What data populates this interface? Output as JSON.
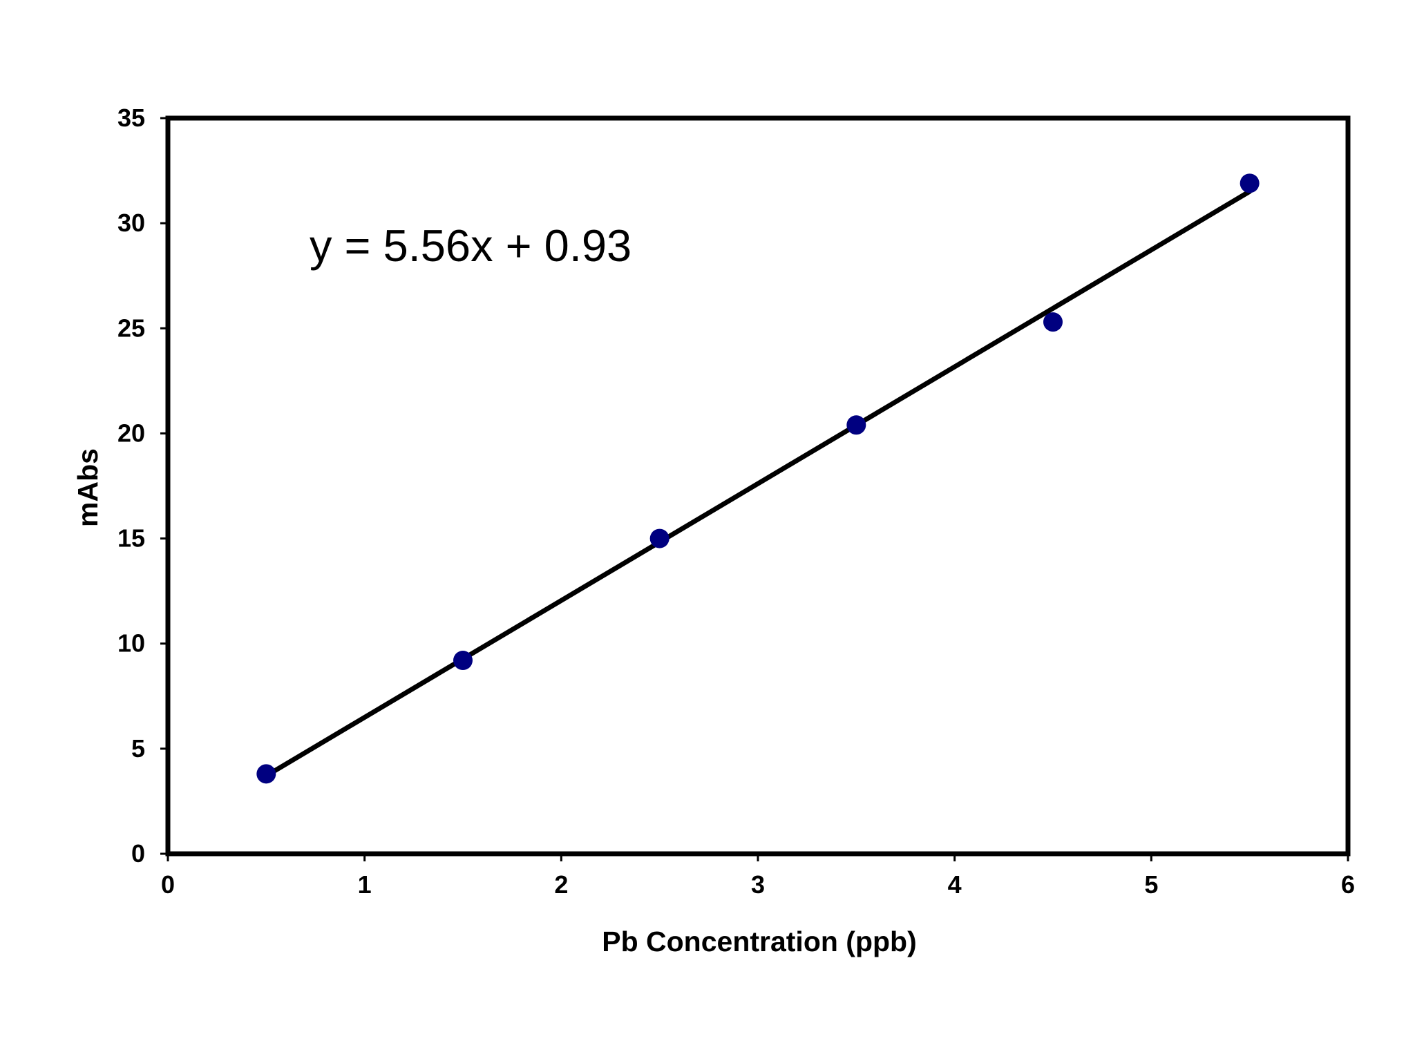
{
  "chart_data": {
    "type": "scatter",
    "title": "",
    "xlabel": "Pb Concentration (ppb)",
    "ylabel": "mAbs",
    "xlim": [
      0,
      6
    ],
    "ylim": [
      0,
      35
    ],
    "x_ticks": [
      "0",
      "1",
      "2",
      "3",
      "4",
      "5",
      "6"
    ],
    "y_ticks": [
      "0",
      "5",
      "10",
      "15",
      "20",
      "25",
      "30",
      "35"
    ],
    "grid": false,
    "legend": "none",
    "series": [
      {
        "x": [
          0.5,
          1.5,
          2.5,
          3.5,
          4.5,
          5.5
        ],
        "y": [
          3.8,
          9.2,
          15.0,
          20.4,
          25.3,
          31.9
        ],
        "marker": "circle",
        "color": "#000080"
      }
    ],
    "trendline": {
      "type": "linear",
      "slope": 5.56,
      "intercept": 0.93,
      "x_range": [
        0.5,
        5.5
      ],
      "color": "#000000"
    },
    "annotations": [
      {
        "text": "y = 5.56x + 0.93"
      }
    ]
  }
}
